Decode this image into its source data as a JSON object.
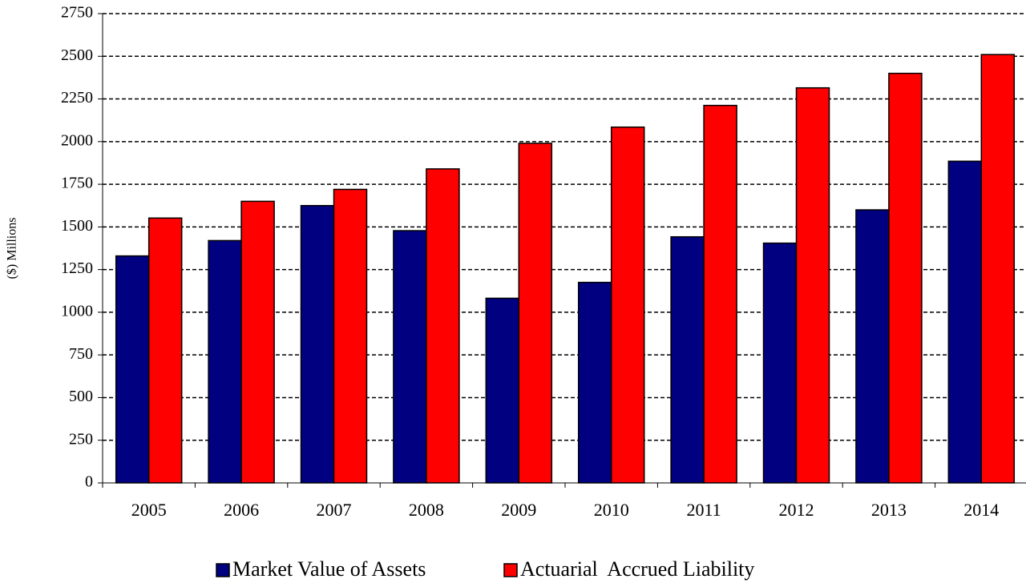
{
  "chart_data": {
    "type": "bar",
    "y_label": "($) Millions",
    "categories": [
      "2005",
      "2006",
      "2007",
      "2008",
      "2009",
      "2010",
      "2011",
      "2012",
      "2013",
      "2014"
    ],
    "series": [
      {
        "name": "Market Value of Assets",
        "color": "#000080",
        "values": [
          1330,
          1420,
          1625,
          1478,
          1082,
          1175,
          1442,
          1405,
          1600,
          1885
        ]
      },
      {
        "name": "Actuarial  Accrued Liability",
        "color": "#ff0000",
        "values": [
          1552,
          1650,
          1720,
          1840,
          1990,
          2085,
          2212,
          2315,
          2400,
          2510
        ]
      }
    ],
    "ylim": [
      0,
      2750
    ],
    "yticks": [
      0,
      250,
      500,
      750,
      1000,
      1250,
      1500,
      1750,
      2000,
      2250,
      2500,
      2750
    ],
    "grid": true,
    "legend": "bottom"
  }
}
